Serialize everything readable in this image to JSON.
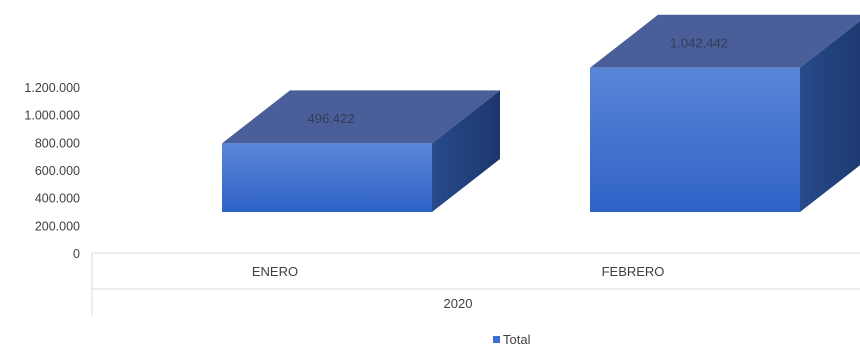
{
  "chart_data": {
    "type": "bar",
    "style": "3d",
    "categories": [
      "ENERO",
      "FEBRERO"
    ],
    "group_label": "2020",
    "series": [
      {
        "name": "Total",
        "values": [
          496422,
          1042442
        ],
        "color": "#3a6fd0"
      }
    ],
    "data_labels": [
      "496.422",
      "1.042.442"
    ],
    "y_ticks": [
      0,
      200000,
      400000,
      600000,
      800000,
      1000000,
      1200000
    ],
    "y_tick_labels": [
      "0",
      "200.000",
      "400.000",
      "600.000",
      "800.000",
      "1.000.000",
      "1.200.000"
    ],
    "ylim": [
      0,
      1200000
    ],
    "legend_position": "bottom",
    "grid": false,
    "title": "",
    "xlabel": "",
    "ylabel": ""
  }
}
